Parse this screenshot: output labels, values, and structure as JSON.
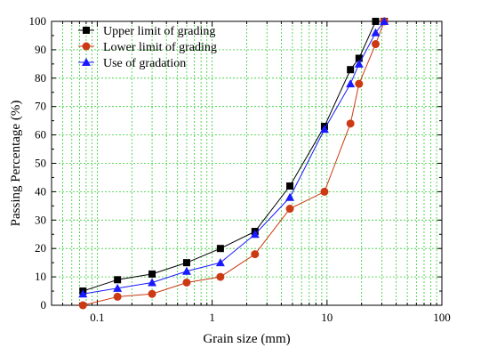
{
  "chart_data": {
    "type": "line",
    "title": "",
    "xlabel": "Grain size (mm)",
    "ylabel": "Passing Percentage (%)",
    "x_scale": "log",
    "xlim": [
      0.04,
      100
    ],
    "ylim": [
      0,
      100
    ],
    "x_ticks": [
      {
        "value": 0.1,
        "label": "0.1"
      },
      {
        "value": 1,
        "label": "1"
      },
      {
        "value": 10,
        "label": "10"
      },
      {
        "value": 100,
        "label": "100"
      }
    ],
    "y_ticks": [
      0,
      10,
      20,
      30,
      40,
      50,
      60,
      70,
      80,
      90,
      100
    ],
    "grid": true,
    "grid_color": "#33cc33",
    "legend_position": "top-left",
    "x": [
      0.075,
      0.15,
      0.3,
      0.6,
      1.18,
      2.36,
      4.75,
      9.5,
      16,
      19,
      26.5,
      31.5
    ],
    "series": [
      {
        "name": "Upper limit of grading",
        "color": "#000000",
        "marker": "square",
        "values": [
          5,
          9,
          11,
          15,
          20,
          26,
          42,
          63,
          83,
          87,
          100,
          100
        ]
      },
      {
        "name": "Lower limit of grading",
        "color": "#cc3a14",
        "marker": "circle",
        "values": [
          0,
          3,
          4,
          8,
          10,
          18,
          34,
          40,
          64,
          78,
          92,
          100
        ]
      },
      {
        "name": "Use of gradation",
        "color": "#1a1aff",
        "marker": "triangle",
        "values": [
          4,
          6,
          8,
          12,
          15,
          25,
          38,
          62,
          78,
          85,
          96,
          100
        ]
      }
    ]
  }
}
